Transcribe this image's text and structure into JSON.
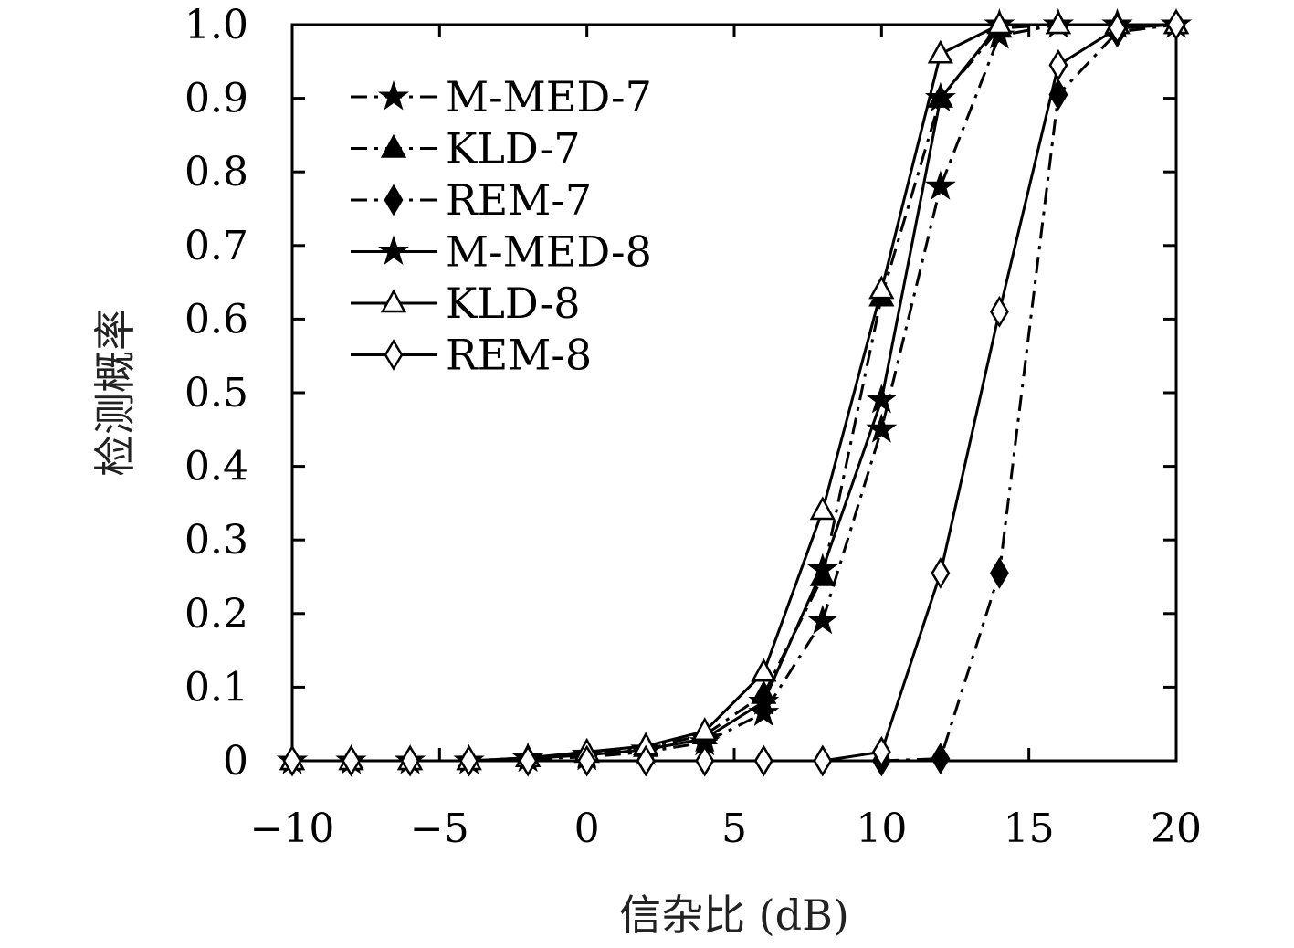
{
  "chart_data": {
    "type": "line",
    "title": "",
    "xlabel": "信杂比 (dB)",
    "ylabel": "检测概率",
    "xlim": [
      -10,
      20
    ],
    "ylim": [
      0,
      1
    ],
    "xticks": [
      -10,
      -5,
      0,
      5,
      10,
      15,
      20
    ],
    "xtick_labels": [
      "−10",
      "−5",
      "0",
      "5",
      "10",
      "15",
      "20"
    ],
    "yticks": [
      0,
      0.1,
      0.2,
      0.3,
      0.4,
      0.5,
      0.6,
      0.7,
      0.8,
      0.9,
      1.0
    ],
    "ytick_labels": [
      "0",
      "0.1",
      "0.2",
      "0.3",
      "0.4",
      "0.5",
      "0.6",
      "0.7",
      "0.8",
      "0.9",
      "1.0"
    ],
    "grid": false,
    "legend_position": "top-left",
    "x": [
      -10,
      -8,
      -6,
      -4,
      -2,
      0,
      2,
      4,
      6,
      8,
      10,
      12,
      14,
      16,
      18,
      20
    ],
    "series": [
      {
        "name": "M-MED-7",
        "line": "dashdot",
        "marker": "star",
        "filled": true,
        "values": [
          0,
          0,
          0,
          0,
          0.003,
          0.005,
          0.012,
          0.025,
          0.065,
          0.19,
          0.45,
          0.78,
          0.985,
          1.0,
          1.0,
          1.0
        ]
      },
      {
        "name": "KLD-7",
        "line": "dashdot",
        "marker": "triangle",
        "filled": true,
        "values": [
          0,
          0,
          0,
          0,
          0.004,
          0.01,
          0.018,
          0.035,
          0.09,
          0.25,
          0.63,
          0.9,
          0.995,
          1.0,
          1.0,
          1.0
        ]
      },
      {
        "name": "REM-7",
        "line": "dashdot",
        "marker": "diamond",
        "filled": true,
        "values": [
          0,
          0,
          0,
          0,
          0,
          0,
          0,
          0,
          0,
          0,
          0,
          0.003,
          0.255,
          0.905,
          0.99,
          1.0
        ]
      },
      {
        "name": "M-MED-8",
        "line": "solid",
        "marker": "star",
        "filled": true,
        "values": [
          0,
          0,
          0,
          0,
          0.003,
          0.008,
          0.015,
          0.03,
          0.08,
          0.26,
          0.49,
          0.9,
          1.0,
          1.0,
          1.0,
          1.0
        ]
      },
      {
        "name": "KLD-8",
        "line": "solid",
        "marker": "triangle",
        "filled": false,
        "values": [
          0,
          0,
          0,
          0,
          0.004,
          0.012,
          0.02,
          0.04,
          0.12,
          0.34,
          0.64,
          0.96,
          1.0,
          1.0,
          1.0,
          1.0
        ]
      },
      {
        "name": "REM-8",
        "line": "solid",
        "marker": "diamond",
        "filled": false,
        "values": [
          0,
          0,
          0,
          0,
          0,
          0,
          0,
          0,
          0,
          0,
          0.012,
          0.255,
          0.61,
          0.945,
          0.995,
          1.0
        ]
      }
    ]
  }
}
